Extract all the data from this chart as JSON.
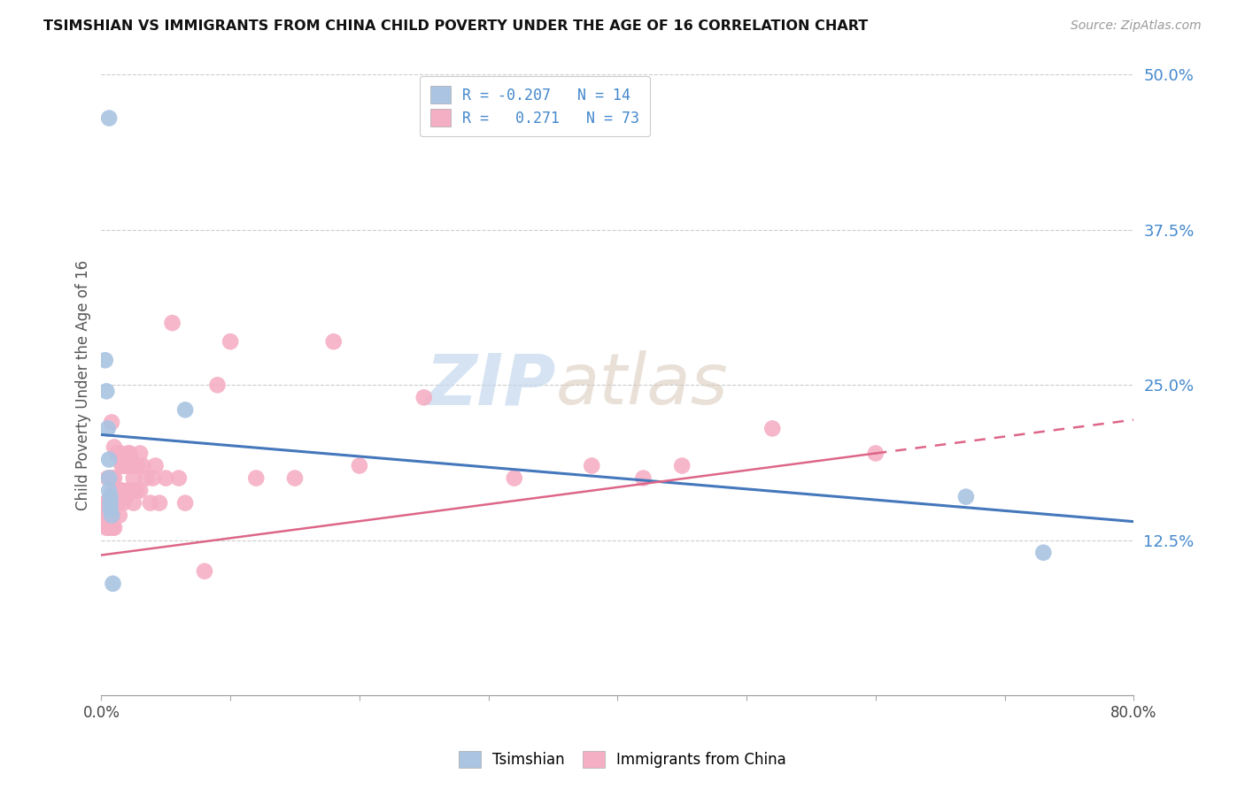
{
  "title": "TSIMSHIAN VS IMMIGRANTS FROM CHINA CHILD POVERTY UNDER THE AGE OF 16 CORRELATION CHART",
  "source": "Source: ZipAtlas.com",
  "ylabel": "Child Poverty Under the Age of 16",
  "xlim": [
    0.0,
    0.8
  ],
  "ylim": [
    0.0,
    0.5
  ],
  "yticks": [
    0.0,
    0.125,
    0.25,
    0.375,
    0.5
  ],
  "ytick_labels": [
    "",
    "12.5%",
    "25.0%",
    "37.5%",
    "50.0%"
  ],
  "xticks": [
    0.0,
    0.1,
    0.2,
    0.3,
    0.4,
    0.5,
    0.6,
    0.7,
    0.8
  ],
  "xtick_labels": [
    "0.0%",
    "",
    "",
    "",
    "",
    "",
    "",
    "",
    "80.0%"
  ],
  "tsimshian_color": "#aac4e2",
  "china_color": "#f5afc5",
  "tsimshian_line_color": "#4477bb",
  "china_line_color": "#dd6688",
  "watermark_zip": "ZIP",
  "watermark_atlas": "atlas",
  "tsimshian_x": [
    0.006,
    0.003,
    0.004,
    0.005,
    0.006,
    0.006,
    0.006,
    0.007,
    0.007,
    0.007,
    0.008,
    0.009,
    0.065,
    0.67,
    0.73
  ],
  "tsimshian_y": [
    0.465,
    0.27,
    0.245,
    0.215,
    0.19,
    0.175,
    0.165,
    0.16,
    0.155,
    0.15,
    0.145,
    0.09,
    0.23,
    0.16,
    0.115
  ],
  "china_x": [
    0.003,
    0.004,
    0.004,
    0.005,
    0.005,
    0.005,
    0.006,
    0.006,
    0.007,
    0.007,
    0.008,
    0.008,
    0.008,
    0.009,
    0.009,
    0.009,
    0.009,
    0.009,
    0.01,
    0.01,
    0.01,
    0.01,
    0.01,
    0.012,
    0.013,
    0.013,
    0.014,
    0.015,
    0.015,
    0.016,
    0.016,
    0.017,
    0.017,
    0.018,
    0.019,
    0.02,
    0.02,
    0.021,
    0.022,
    0.022,
    0.023,
    0.024,
    0.025,
    0.025,
    0.026,
    0.027,
    0.028,
    0.03,
    0.03,
    0.032,
    0.035,
    0.038,
    0.04,
    0.042,
    0.045,
    0.05,
    0.055,
    0.06,
    0.065,
    0.08,
    0.09,
    0.1,
    0.12,
    0.15,
    0.18,
    0.2,
    0.25,
    0.32,
    0.38,
    0.42,
    0.45,
    0.52,
    0.6
  ],
  "china_y": [
    0.155,
    0.145,
    0.135,
    0.175,
    0.155,
    0.145,
    0.155,
    0.135,
    0.175,
    0.155,
    0.22,
    0.175,
    0.155,
    0.175,
    0.165,
    0.155,
    0.145,
    0.135,
    0.2,
    0.175,
    0.165,
    0.155,
    0.135,
    0.195,
    0.165,
    0.155,
    0.145,
    0.195,
    0.165,
    0.185,
    0.165,
    0.185,
    0.155,
    0.185,
    0.16,
    0.185,
    0.165,
    0.195,
    0.195,
    0.165,
    0.19,
    0.185,
    0.175,
    0.155,
    0.185,
    0.165,
    0.185,
    0.195,
    0.165,
    0.185,
    0.175,
    0.155,
    0.175,
    0.185,
    0.155,
    0.175,
    0.3,
    0.175,
    0.155,
    0.1,
    0.25,
    0.285,
    0.175,
    0.175,
    0.285,
    0.185,
    0.24,
    0.175,
    0.185,
    0.175,
    0.185,
    0.215,
    0.195
  ],
  "tsimshian_line_x0": 0.0,
  "tsimshian_line_y0": 0.21,
  "tsimshian_line_x1": 0.8,
  "tsimshian_line_y1": 0.14,
  "china_line_solid_x0": 0.0,
  "china_line_solid_y0": 0.113,
  "china_line_solid_x1": 0.6,
  "china_line_solid_y1": 0.195,
  "china_line_dash_x0": 0.6,
  "china_line_dash_y0": 0.195,
  "china_line_dash_x1": 0.8,
  "china_line_dash_y1": 0.222
}
